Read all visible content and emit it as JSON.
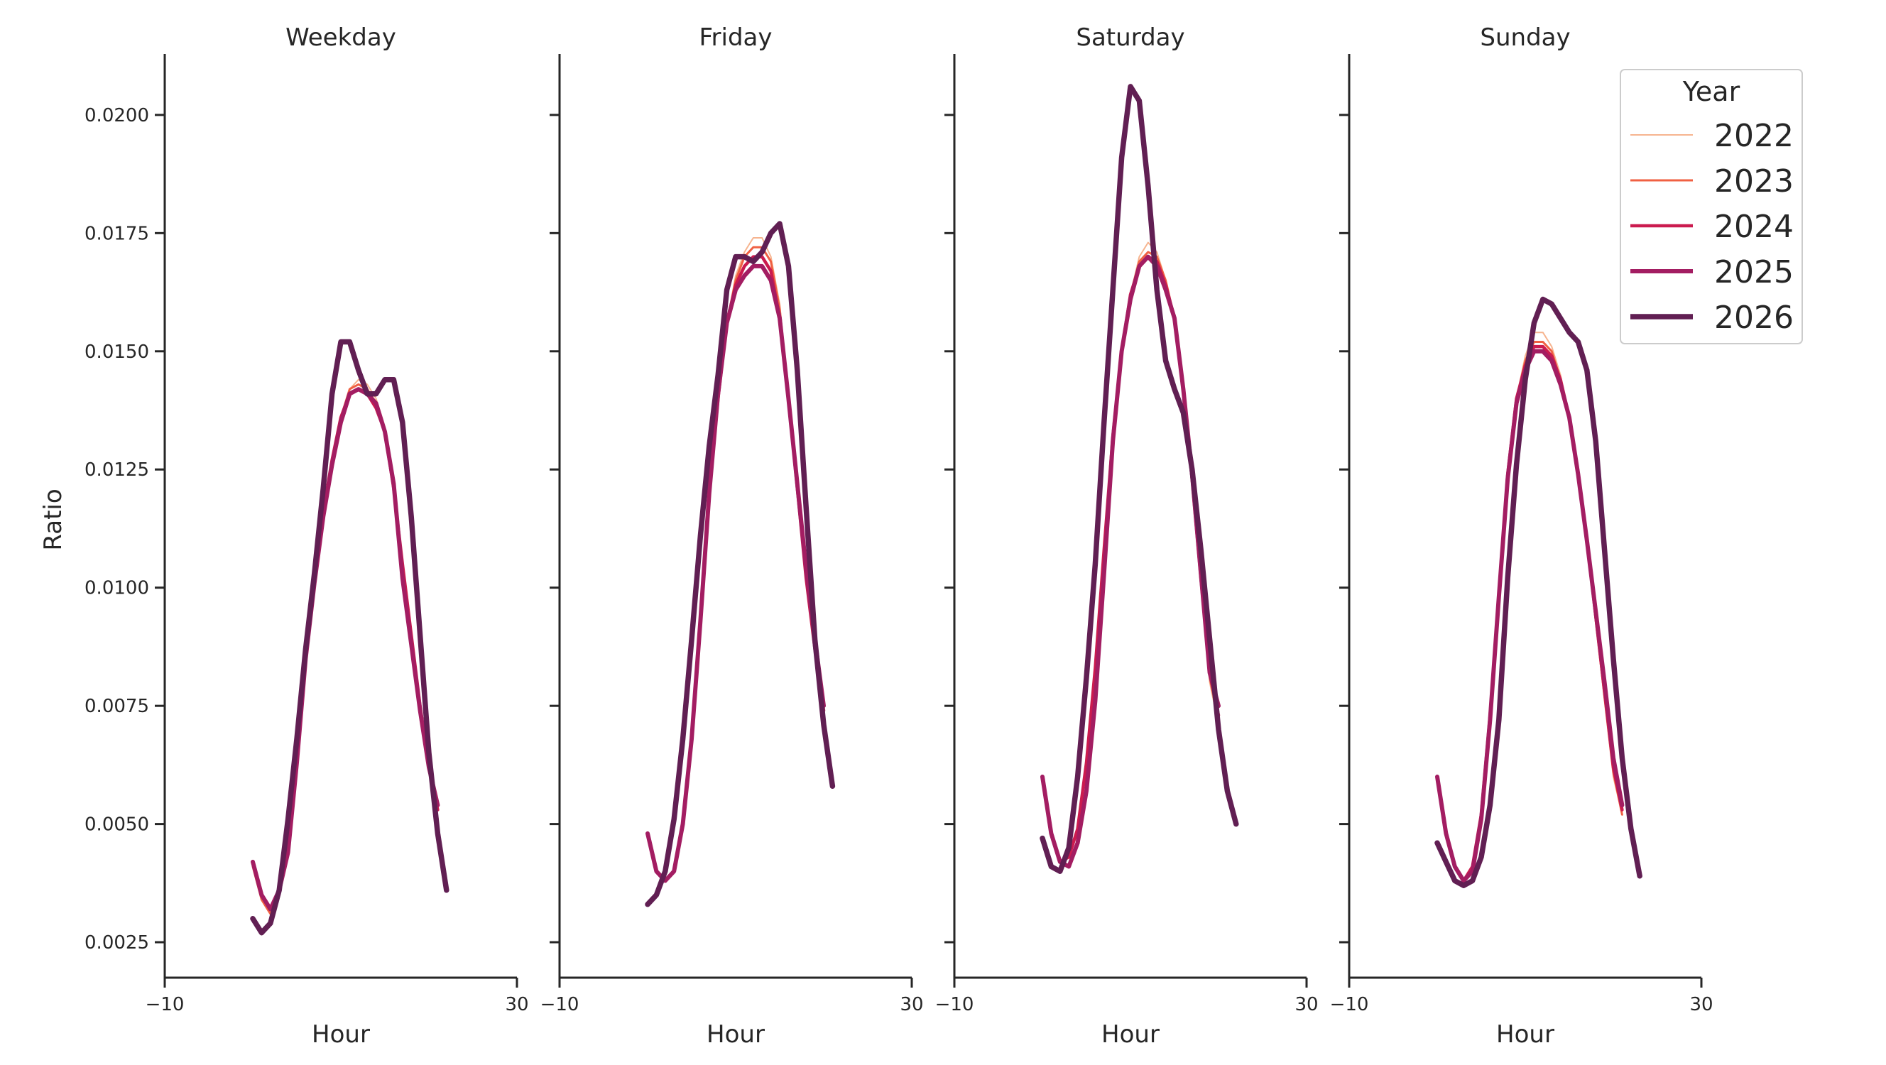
{
  "chart_data": {
    "type": "line",
    "xlabel": "Hour",
    "ylabel": "Ratio",
    "xlim": [
      -10,
      30
    ],
    "ylim": [
      0.00175,
      0.0215
    ],
    "x_ticks": [
      -10,
      30
    ],
    "x_tick_labels": [
      "−10",
      "30"
    ],
    "y_ticks": [
      0.0025,
      0.005,
      0.0075,
      0.01,
      0.0125,
      0.015,
      0.0175,
      0.02
    ],
    "y_tick_labels": [
      "0.0025",
      "0.0050",
      "0.0075",
      "0.0100",
      "0.0125",
      "0.0150",
      "0.0175",
      "0.0200"
    ],
    "grid": false,
    "legend": {
      "title": "Year",
      "placement": "top-right",
      "entries": [
        {
          "label": "2022",
          "color": "#f6b48f"
        },
        {
          "label": "2023",
          "color": "#f06043"
        },
        {
          "label": "2024",
          "color": "#cb1b4f"
        },
        {
          "label": "2025",
          "color": "#a31d62"
        },
        {
          "label": "2026",
          "color": "#611f53"
        }
      ]
    },
    "x": [
      0,
      1,
      2,
      3,
      4,
      5,
      6,
      7,
      8,
      9,
      10,
      11,
      12,
      13,
      14,
      15,
      16,
      17,
      18,
      19,
      20,
      21,
      22,
      23
    ],
    "panels": [
      {
        "title": "Weekday",
        "series": [
          {
            "name": "2022",
            "values": [
              0.0041,
              0.0034,
              0.0031,
              0.0036,
              0.0046,
              0.0065,
              0.0086,
              0.0102,
              0.0116,
              0.0127,
              0.0136,
              0.0142,
              0.0144,
              0.0143,
              0.014,
              0.0134,
              0.0122,
              0.0105,
              0.009,
              0.0075,
              0.0062,
              0.005,
              null,
              null
            ]
          },
          {
            "name": "2023",
            "values": [
              0.0041,
              0.0034,
              0.0031,
              0.0036,
              0.0046,
              0.0065,
              0.0086,
              0.0102,
              0.0116,
              0.0127,
              0.0136,
              0.0142,
              0.0143,
              0.0142,
              0.0139,
              0.0133,
              0.0121,
              0.0105,
              0.009,
              0.0075,
              0.0062,
              0.0051,
              null,
              null
            ]
          },
          {
            "name": "2024",
            "values": [
              0.0042,
              0.0035,
              0.0032,
              0.0036,
              0.0046,
              0.0065,
              0.0086,
              0.0102,
              0.0116,
              0.0127,
              0.0136,
              0.0141,
              0.0142,
              0.0141,
              0.0138,
              0.0133,
              0.0121,
              0.0105,
              0.009,
              0.0075,
              0.0062,
              0.0053,
              null,
              null
            ]
          },
          {
            "name": "2025",
            "values": [
              0.0042,
              0.0035,
              0.0032,
              0.0036,
              0.0044,
              0.0063,
              0.0085,
              0.0101,
              0.0115,
              0.0126,
              0.0135,
              0.0141,
              0.0142,
              0.0141,
              0.0139,
              0.0133,
              0.0122,
              0.0102,
              0.0088,
              0.0074,
              0.0062,
              0.0054,
              null,
              null
            ]
          },
          {
            "name": "2026",
            "values": [
              0.003,
              0.0027,
              0.0029,
              0.0036,
              0.0051,
              0.0068,
              0.0087,
              0.0103,
              0.0121,
              0.0141,
              0.0152,
              0.0152,
              0.0146,
              0.0141,
              0.0141,
              0.0144,
              0.0144,
              0.0135,
              0.0115,
              0.009,
              0.0065,
              0.0048,
              0.0036,
              null
            ]
          }
        ]
      },
      {
        "title": "Friday",
        "series": [
          {
            "name": "2022",
            "values": [
              0.0048,
              0.004,
              0.0038,
              0.004,
              0.005,
              0.0068,
              0.0093,
              0.012,
              0.014,
              0.0156,
              0.0166,
              0.0171,
              0.0174,
              0.0174,
              0.017,
              0.016,
              0.0141,
              0.0122,
              0.0103,
              0.0086,
              0.0072,
              null,
              null,
              null
            ]
          },
          {
            "name": "2023",
            "values": [
              0.0048,
              0.004,
              0.0038,
              0.004,
              0.005,
              0.0068,
              0.0093,
              0.012,
              0.014,
              0.0156,
              0.0165,
              0.017,
              0.0172,
              0.0172,
              0.0169,
              0.0159,
              0.0141,
              0.0122,
              0.0103,
              0.0087,
              0.0073,
              null,
              null,
              null
            ]
          },
          {
            "name": "2024",
            "values": [
              0.0048,
              0.004,
              0.0038,
              0.004,
              0.005,
              0.0068,
              0.0093,
              0.012,
              0.014,
              0.0156,
              0.0164,
              0.0168,
              0.017,
              0.017,
              0.0167,
              0.0157,
              0.014,
              0.0121,
              0.0102,
              0.0087,
              0.0074,
              null,
              null,
              null
            ]
          },
          {
            "name": "2025",
            "values": [
              0.0048,
              0.004,
              0.0038,
              0.004,
              0.005,
              0.0068,
              0.0093,
              0.012,
              0.0141,
              0.0156,
              0.0163,
              0.0166,
              0.0168,
              0.0168,
              0.0165,
              0.0157,
              0.014,
              0.0122,
              0.0104,
              0.0089,
              0.0075,
              null,
              null,
              null
            ]
          },
          {
            "name": "2026",
            "values": [
              0.0033,
              0.0035,
              0.004,
              0.0051,
              0.0068,
              0.0089,
              0.0111,
              0.013,
              0.0145,
              0.0163,
              0.017,
              0.017,
              0.0169,
              0.0171,
              0.0175,
              0.0177,
              0.0168,
              0.0146,
              0.0117,
              0.0089,
              0.0071,
              0.0058,
              null,
              null
            ]
          }
        ]
      },
      {
        "title": "Saturday",
        "series": [
          {
            "name": "2022",
            "values": [
              0.006,
              0.0048,
              0.0042,
              0.0043,
              0.0049,
              0.0063,
              0.0083,
              0.0108,
              0.0132,
              0.015,
              0.0162,
              0.017,
              0.0173,
              0.0171,
              0.0165,
              0.0157,
              0.0142,
              0.0122,
              0.01,
              0.008,
              0.0071,
              null,
              null,
              null
            ]
          },
          {
            "name": "2023",
            "values": [
              0.006,
              0.0048,
              0.0042,
              0.0043,
              0.0049,
              0.0063,
              0.0083,
              0.0108,
              0.0132,
              0.015,
              0.0162,
              0.0169,
              0.0171,
              0.017,
              0.0165,
              0.0157,
              0.0142,
              0.0122,
              0.0101,
              0.0081,
              0.0072,
              null,
              null,
              null
            ]
          },
          {
            "name": "2024",
            "values": [
              0.006,
              0.0048,
              0.0042,
              0.0043,
              0.0049,
              0.0063,
              0.0083,
              0.0108,
              0.0132,
              0.015,
              0.0162,
              0.0168,
              0.017,
              0.0169,
              0.0164,
              0.0157,
              0.0142,
              0.0123,
              0.0102,
              0.0082,
              0.0073,
              null,
              null,
              null
            ]
          },
          {
            "name": "2025",
            "values": [
              0.006,
              0.0048,
              0.0042,
              0.0041,
              0.0046,
              0.0057,
              0.0076,
              0.0103,
              0.0131,
              0.015,
              0.0161,
              0.0168,
              0.017,
              0.0168,
              0.0163,
              0.0157,
              0.0142,
              0.0124,
              0.0103,
              0.0082,
              0.0075,
              null,
              null,
              null
            ]
          },
          {
            "name": "2026",
            "values": [
              0.0047,
              0.0041,
              0.004,
              0.0045,
              0.006,
              0.0081,
              0.0105,
              0.0135,
              0.0163,
              0.0191,
              0.0206,
              0.0203,
              0.0185,
              0.0163,
              0.0148,
              0.0142,
              0.0137,
              0.0125,
              0.0108,
              0.0089,
              0.007,
              0.0057,
              0.005,
              null
            ]
          }
        ]
      },
      {
        "title": "Sunday",
        "series": [
          {
            "name": "2022",
            "values": [
              0.006,
              0.0048,
              0.0041,
              0.0038,
              0.0041,
              0.0052,
              0.0073,
              0.0098,
              0.0124,
              0.014,
              0.0149,
              0.0154,
              0.0154,
              0.0151,
              0.0145,
              0.0136,
              0.0124,
              0.011,
              0.0093,
              0.0076,
              0.006,
              0.0052,
              null,
              null
            ]
          },
          {
            "name": "2023",
            "values": [
              0.006,
              0.0048,
              0.0041,
              0.0038,
              0.0041,
              0.0052,
              0.0073,
              0.0098,
              0.0124,
              0.014,
              0.0148,
              0.0152,
              0.0152,
              0.015,
              0.0144,
              0.0136,
              0.0124,
              0.011,
              0.0093,
              0.0077,
              0.0061,
              0.0052,
              null,
              null
            ]
          },
          {
            "name": "2024",
            "values": [
              0.006,
              0.0048,
              0.0041,
              0.0038,
              0.0041,
              0.0052,
              0.0073,
              0.0098,
              0.0124,
              0.014,
              0.0147,
              0.0151,
              0.0151,
              0.0149,
              0.0144,
              0.0136,
              0.0124,
              0.011,
              0.0094,
              0.0078,
              0.0062,
              0.0053,
              null,
              null
            ]
          },
          {
            "name": "2025",
            "values": [
              0.006,
              0.0048,
              0.0041,
              0.0038,
              0.004,
              0.0051,
              0.0072,
              0.0098,
              0.0123,
              0.0139,
              0.0146,
              0.015,
              0.015,
              0.0148,
              0.0143,
              0.0136,
              0.0124,
              0.011,
              0.0095,
              0.008,
              0.0064,
              0.0054,
              null,
              null
            ]
          },
          {
            "name": "2026",
            "values": [
              0.0046,
              0.0042,
              0.0038,
              0.0037,
              0.0038,
              0.0043,
              0.0054,
              0.0072,
              0.0102,
              0.0126,
              0.0144,
              0.0156,
              0.0161,
              0.016,
              0.0157,
              0.0154,
              0.0152,
              0.0146,
              0.0131,
              0.0108,
              0.0085,
              0.0064,
              0.0049,
              0.0039
            ]
          }
        ]
      }
    ]
  }
}
